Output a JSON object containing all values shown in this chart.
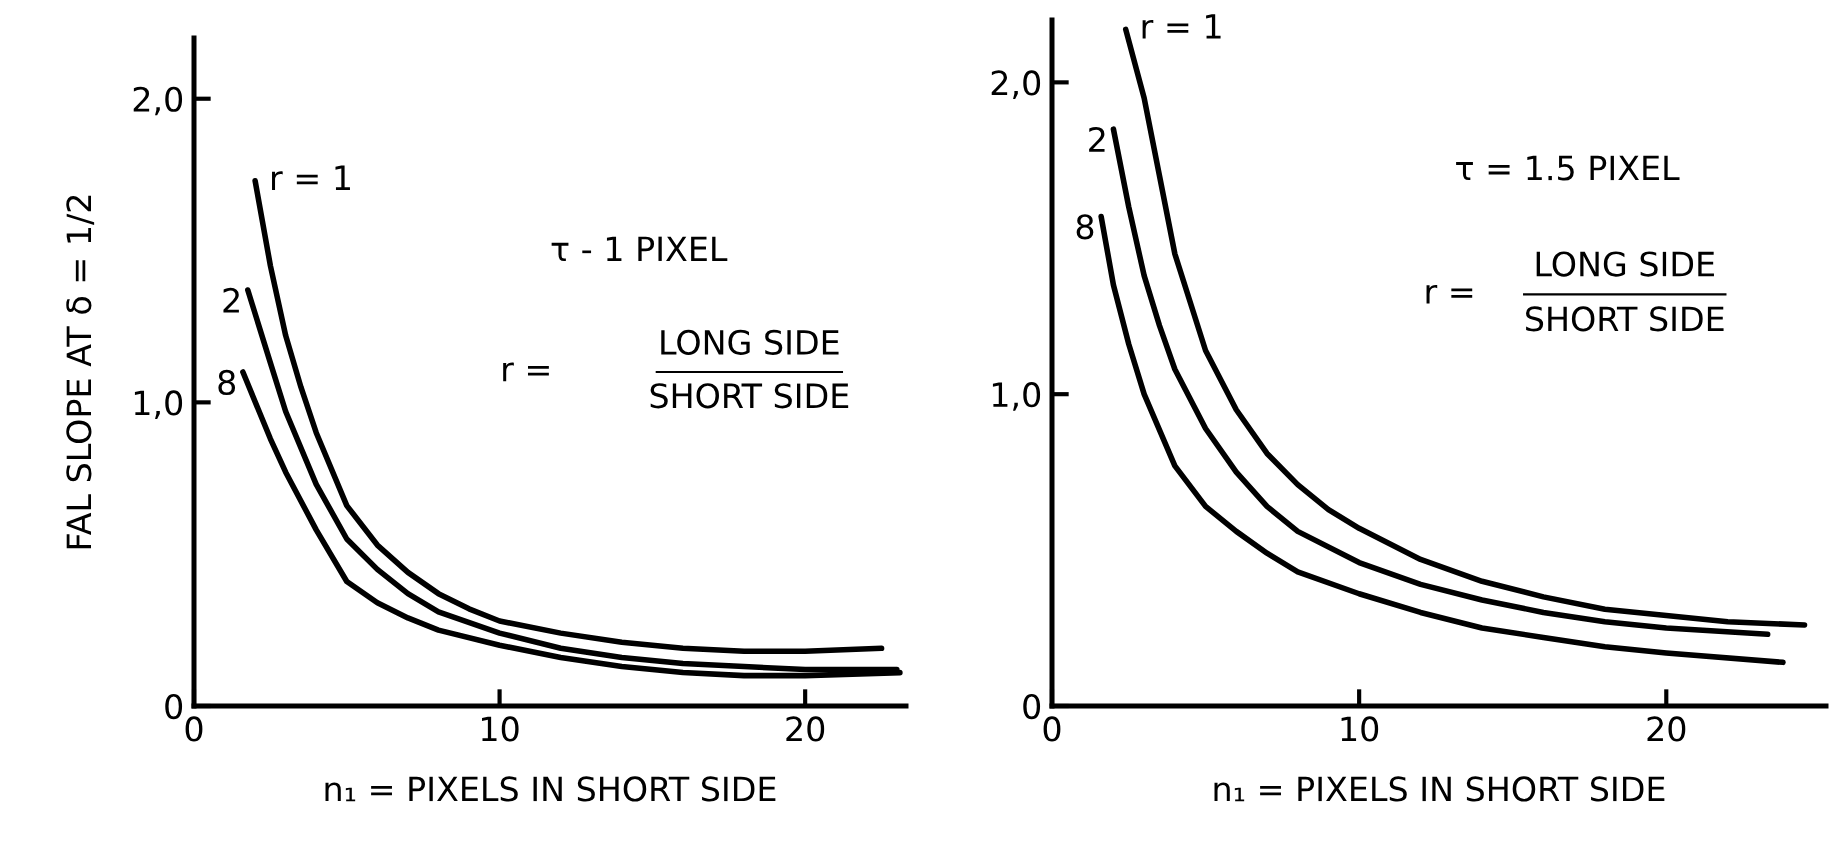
{
  "chart_data": [
    {
      "type": "line",
      "xlabel": "n₁ = PIXELS IN SHORT SIDE",
      "ylabel": "FAL SLOPE AT δ = 1/2",
      "xlim": [
        0,
        23.3
      ],
      "ylim": [
        0,
        2.2
      ],
      "xticks": [
        0,
        10,
        20
      ],
      "yticks": [
        {
          "value": 0,
          "label": "0"
        },
        {
          "value": 1,
          "label": "1,0"
        },
        {
          "value": 2,
          "label": "2,0"
        }
      ],
      "grid": false,
      "legend": false,
      "line_style": "solid",
      "marker": "none",
      "annotations": [
        "τ - 1 PIXEL",
        "r =",
        "LONG SIDE",
        "SHORT SIDE"
      ],
      "series": [
        {
          "name": "r = 1",
          "color": "#000000",
          "x": [
            2.0,
            2.5,
            3.0,
            3.5,
            4,
            5,
            6,
            7,
            8,
            9,
            10,
            12,
            14,
            16,
            18,
            20,
            22.5
          ],
          "values": [
            1.73,
            1.45,
            1.22,
            1.05,
            0.9,
            0.66,
            0.53,
            0.44,
            0.37,
            0.32,
            0.28,
            0.24,
            0.21,
            0.19,
            0.18,
            0.18,
            0.19
          ]
        },
        {
          "name": "2",
          "color": "#000000",
          "x": [
            1.76,
            2.5,
            3,
            4,
            5,
            6,
            7,
            8,
            10,
            12,
            14,
            16,
            18,
            20,
            23
          ],
          "values": [
            1.37,
            1.13,
            0.97,
            0.73,
            0.55,
            0.45,
            0.37,
            0.31,
            0.24,
            0.19,
            0.16,
            0.14,
            0.13,
            0.12,
            0.12
          ]
        },
        {
          "name": "8",
          "color": "#000000",
          "x": [
            1.6,
            2.5,
            3,
            4,
            5,
            6,
            7,
            8,
            10,
            12,
            14,
            16,
            18,
            20,
            23.1
          ],
          "values": [
            1.1,
            0.88,
            0.77,
            0.58,
            0.41,
            0.34,
            0.29,
            0.25,
            0.2,
            0.16,
            0.13,
            0.11,
            0.1,
            0.1,
            0.11
          ]
        }
      ]
    },
    {
      "type": "line",
      "xlabel": "n₁ = PIXELS IN SHORT SIDE",
      "xlim": [
        0,
        25.2
      ],
      "ylim": [
        0,
        2.2
      ],
      "xticks": [
        0,
        10,
        20
      ],
      "yticks": [
        {
          "value": 0,
          "label": "0"
        },
        {
          "value": 1,
          "label": "1,0"
        },
        {
          "value": 2,
          "label": "2,0"
        }
      ],
      "grid": false,
      "legend": false,
      "line_style": "solid",
      "marker": "none",
      "annotations": [
        "τ = 1.5 PIXEL",
        "r =",
        "LONG SIDE",
        "SHORT SIDE"
      ],
      "series": [
        {
          "name": "r = 1",
          "color": "#000000",
          "x": [
            2.4,
            3,
            3.5,
            4,
            5,
            6,
            7,
            8,
            9,
            10,
            12,
            14,
            16,
            18,
            20,
            22,
            24.5
          ],
          "values": [
            2.17,
            1.95,
            1.7,
            1.45,
            1.14,
            0.95,
            0.81,
            0.71,
            0.63,
            0.57,
            0.47,
            0.4,
            0.35,
            0.31,
            0.29,
            0.27,
            0.26
          ]
        },
        {
          "name": "2",
          "color": "#000000",
          "x": [
            2.0,
            2.5,
            3,
            3.5,
            4,
            5,
            6,
            7,
            8,
            10,
            12,
            14,
            16,
            18,
            20,
            23.3
          ],
          "values": [
            1.85,
            1.6,
            1.38,
            1.22,
            1.08,
            0.89,
            0.75,
            0.64,
            0.56,
            0.46,
            0.39,
            0.34,
            0.3,
            0.27,
            0.25,
            0.23
          ]
        },
        {
          "name": "8",
          "color": "#000000",
          "x": [
            1.6,
            2,
            2.5,
            3,
            4,
            5,
            6,
            7,
            8,
            10,
            12,
            14,
            16,
            18,
            20,
            23.8
          ],
          "values": [
            1.57,
            1.35,
            1.16,
            1.0,
            0.77,
            0.64,
            0.56,
            0.49,
            0.43,
            0.36,
            0.3,
            0.25,
            0.22,
            0.19,
            0.17,
            0.14
          ]
        }
      ]
    }
  ]
}
